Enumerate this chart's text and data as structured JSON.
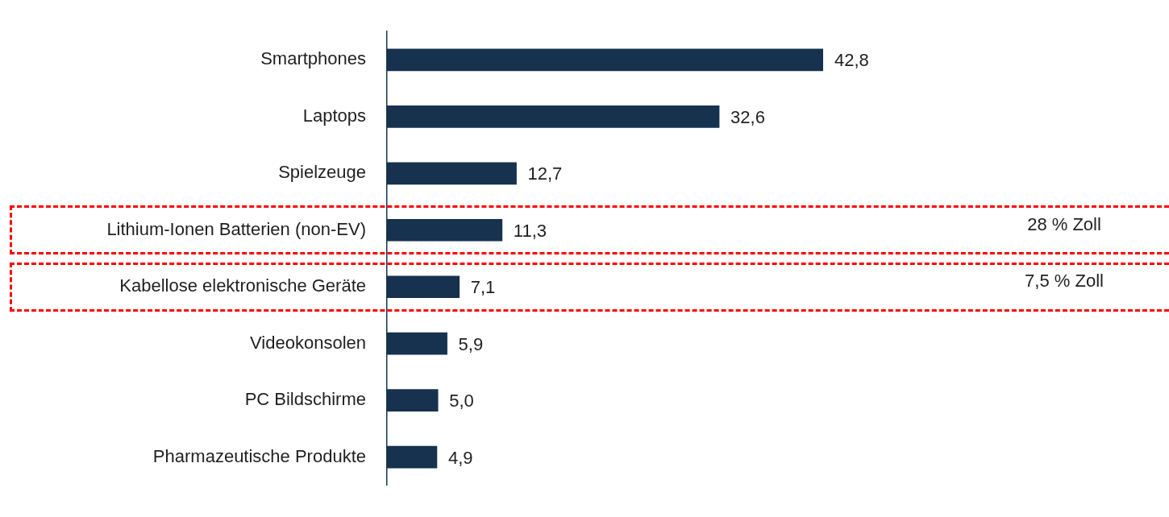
{
  "chart_data": {
    "type": "bar",
    "orientation": "horizontal",
    "categories": [
      "Smartphones",
      "Laptops",
      "Spielzeuge",
      "Lithium-Ionen Batterien (non-EV)",
      "Kabellose elektronische Geräte",
      "Videokonsolen",
      "PC Bildschirme",
      "Pharmazeutische Produkte"
    ],
    "values": [
      42.8,
      32.6,
      12.7,
      11.3,
      7.1,
      5.9,
      5.0,
      4.9
    ],
    "value_labels": [
      "42,8",
      "32,6",
      "12,7",
      "11,3",
      "7,1",
      "5,9",
      "5,0",
      "4,9"
    ],
    "color": "#17324f",
    "annotations": [
      "28 % Zoll",
      "7,5 % Zoll"
    ],
    "legend": false
  }
}
